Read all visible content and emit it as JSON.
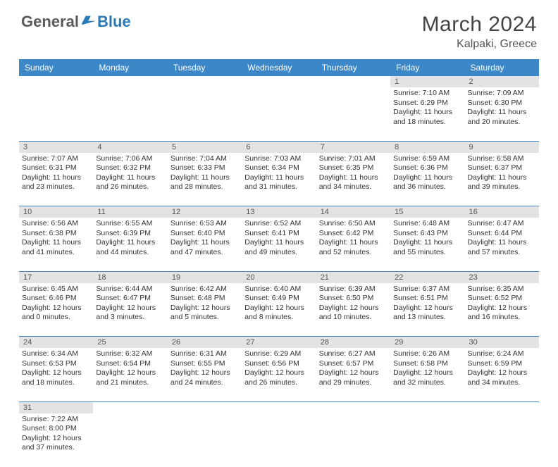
{
  "brand": {
    "word1": "General",
    "word2": "Blue"
  },
  "title": "March 2024",
  "location": "Kalpaki, Greece",
  "weekdays": [
    "Sunday",
    "Monday",
    "Tuesday",
    "Wednesday",
    "Thursday",
    "Friday",
    "Saturday"
  ],
  "colors": {
    "header_bg": "#3b87c8",
    "header_text": "#ffffff",
    "daynum_bg": "#e3e3e3",
    "row_border": "#3b87c8",
    "logo_gray": "#5a5a5a",
    "logo_blue": "#2a7ab8"
  },
  "weeks": [
    [
      null,
      null,
      null,
      null,
      null,
      {
        "n": "1",
        "sr": "Sunrise: 7:10 AM",
        "ss": "Sunset: 6:29 PM",
        "d1": "Daylight: 11 hours",
        "d2": "and 18 minutes."
      },
      {
        "n": "2",
        "sr": "Sunrise: 7:09 AM",
        "ss": "Sunset: 6:30 PM",
        "d1": "Daylight: 11 hours",
        "d2": "and 20 minutes."
      }
    ],
    [
      {
        "n": "3",
        "sr": "Sunrise: 7:07 AM",
        "ss": "Sunset: 6:31 PM",
        "d1": "Daylight: 11 hours",
        "d2": "and 23 minutes."
      },
      {
        "n": "4",
        "sr": "Sunrise: 7:06 AM",
        "ss": "Sunset: 6:32 PM",
        "d1": "Daylight: 11 hours",
        "d2": "and 26 minutes."
      },
      {
        "n": "5",
        "sr": "Sunrise: 7:04 AM",
        "ss": "Sunset: 6:33 PM",
        "d1": "Daylight: 11 hours",
        "d2": "and 28 minutes."
      },
      {
        "n": "6",
        "sr": "Sunrise: 7:03 AM",
        "ss": "Sunset: 6:34 PM",
        "d1": "Daylight: 11 hours",
        "d2": "and 31 minutes."
      },
      {
        "n": "7",
        "sr": "Sunrise: 7:01 AM",
        "ss": "Sunset: 6:35 PM",
        "d1": "Daylight: 11 hours",
        "d2": "and 34 minutes."
      },
      {
        "n": "8",
        "sr": "Sunrise: 6:59 AM",
        "ss": "Sunset: 6:36 PM",
        "d1": "Daylight: 11 hours",
        "d2": "and 36 minutes."
      },
      {
        "n": "9",
        "sr": "Sunrise: 6:58 AM",
        "ss": "Sunset: 6:37 PM",
        "d1": "Daylight: 11 hours",
        "d2": "and 39 minutes."
      }
    ],
    [
      {
        "n": "10",
        "sr": "Sunrise: 6:56 AM",
        "ss": "Sunset: 6:38 PM",
        "d1": "Daylight: 11 hours",
        "d2": "and 41 minutes."
      },
      {
        "n": "11",
        "sr": "Sunrise: 6:55 AM",
        "ss": "Sunset: 6:39 PM",
        "d1": "Daylight: 11 hours",
        "d2": "and 44 minutes."
      },
      {
        "n": "12",
        "sr": "Sunrise: 6:53 AM",
        "ss": "Sunset: 6:40 PM",
        "d1": "Daylight: 11 hours",
        "d2": "and 47 minutes."
      },
      {
        "n": "13",
        "sr": "Sunrise: 6:52 AM",
        "ss": "Sunset: 6:41 PM",
        "d1": "Daylight: 11 hours",
        "d2": "and 49 minutes."
      },
      {
        "n": "14",
        "sr": "Sunrise: 6:50 AM",
        "ss": "Sunset: 6:42 PM",
        "d1": "Daylight: 11 hours",
        "d2": "and 52 minutes."
      },
      {
        "n": "15",
        "sr": "Sunrise: 6:48 AM",
        "ss": "Sunset: 6:43 PM",
        "d1": "Daylight: 11 hours",
        "d2": "and 55 minutes."
      },
      {
        "n": "16",
        "sr": "Sunrise: 6:47 AM",
        "ss": "Sunset: 6:44 PM",
        "d1": "Daylight: 11 hours",
        "d2": "and 57 minutes."
      }
    ],
    [
      {
        "n": "17",
        "sr": "Sunrise: 6:45 AM",
        "ss": "Sunset: 6:46 PM",
        "d1": "Daylight: 12 hours",
        "d2": "and 0 minutes."
      },
      {
        "n": "18",
        "sr": "Sunrise: 6:44 AM",
        "ss": "Sunset: 6:47 PM",
        "d1": "Daylight: 12 hours",
        "d2": "and 3 minutes."
      },
      {
        "n": "19",
        "sr": "Sunrise: 6:42 AM",
        "ss": "Sunset: 6:48 PM",
        "d1": "Daylight: 12 hours",
        "d2": "and 5 minutes."
      },
      {
        "n": "20",
        "sr": "Sunrise: 6:40 AM",
        "ss": "Sunset: 6:49 PM",
        "d1": "Daylight: 12 hours",
        "d2": "and 8 minutes."
      },
      {
        "n": "21",
        "sr": "Sunrise: 6:39 AM",
        "ss": "Sunset: 6:50 PM",
        "d1": "Daylight: 12 hours",
        "d2": "and 10 minutes."
      },
      {
        "n": "22",
        "sr": "Sunrise: 6:37 AM",
        "ss": "Sunset: 6:51 PM",
        "d1": "Daylight: 12 hours",
        "d2": "and 13 minutes."
      },
      {
        "n": "23",
        "sr": "Sunrise: 6:35 AM",
        "ss": "Sunset: 6:52 PM",
        "d1": "Daylight: 12 hours",
        "d2": "and 16 minutes."
      }
    ],
    [
      {
        "n": "24",
        "sr": "Sunrise: 6:34 AM",
        "ss": "Sunset: 6:53 PM",
        "d1": "Daylight: 12 hours",
        "d2": "and 18 minutes."
      },
      {
        "n": "25",
        "sr": "Sunrise: 6:32 AM",
        "ss": "Sunset: 6:54 PM",
        "d1": "Daylight: 12 hours",
        "d2": "and 21 minutes."
      },
      {
        "n": "26",
        "sr": "Sunrise: 6:31 AM",
        "ss": "Sunset: 6:55 PM",
        "d1": "Daylight: 12 hours",
        "d2": "and 24 minutes."
      },
      {
        "n": "27",
        "sr": "Sunrise: 6:29 AM",
        "ss": "Sunset: 6:56 PM",
        "d1": "Daylight: 12 hours",
        "d2": "and 26 minutes."
      },
      {
        "n": "28",
        "sr": "Sunrise: 6:27 AM",
        "ss": "Sunset: 6:57 PM",
        "d1": "Daylight: 12 hours",
        "d2": "and 29 minutes."
      },
      {
        "n": "29",
        "sr": "Sunrise: 6:26 AM",
        "ss": "Sunset: 6:58 PM",
        "d1": "Daylight: 12 hours",
        "d2": "and 32 minutes."
      },
      {
        "n": "30",
        "sr": "Sunrise: 6:24 AM",
        "ss": "Sunset: 6:59 PM",
        "d1": "Daylight: 12 hours",
        "d2": "and 34 minutes."
      }
    ],
    [
      {
        "n": "31",
        "sr": "Sunrise: 7:22 AM",
        "ss": "Sunset: 8:00 PM",
        "d1": "Daylight: 12 hours",
        "d2": "and 37 minutes."
      },
      null,
      null,
      null,
      null,
      null,
      null
    ]
  ]
}
